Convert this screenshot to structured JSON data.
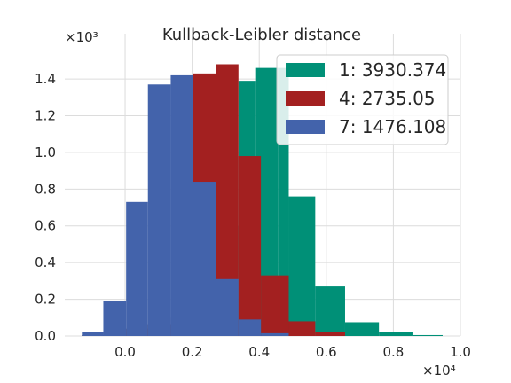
{
  "chart_data": {
    "type": "bar",
    "title": "Kullback-Leibler distance",
    "xlabel": "",
    "ylabel": "",
    "x_scale_label": "×10⁴",
    "y_scale_label": "×10³",
    "xlim": [
      -0.18,
      1.0
    ],
    "ylim": [
      0,
      1.55
    ],
    "xticks": [
      0.0,
      0.2,
      0.4,
      0.6,
      0.8,
      1.0
    ],
    "xtick_labels": [
      "0.0",
      "0.2",
      "0.4",
      "0.6",
      "0.8",
      "1.0"
    ],
    "yticks": [
      0.0,
      0.2,
      0.4,
      0.6,
      0.8,
      1.0,
      1.2,
      1.4
    ],
    "ytick_labels": [
      "0.0",
      "0.2",
      "0.4",
      "0.6",
      "0.8",
      "1.0",
      "1.2",
      "1.4"
    ],
    "grid": true,
    "legend_position": "top-right",
    "series": [
      {
        "name": "1: 3930.374",
        "color": "#009077",
        "bins": [
          {
            "x0": -0.129,
            "x1": -0.065,
            "y": 0.005
          },
          {
            "x0": -0.065,
            "x1": 0.003,
            "y": 0.02
          },
          {
            "x0": 0.003,
            "x1": 0.068,
            "y": 0.04
          },
          {
            "x0": 0.068,
            "x1": 0.136,
            "y": 0.06
          },
          {
            "x0": 0.136,
            "x1": 0.203,
            "y": 0.1
          },
          {
            "x0": 0.203,
            "x1": 0.271,
            "y": 0.2
          },
          {
            "x0": 0.271,
            "x1": 0.338,
            "y": 0.6
          },
          {
            "x0": 0.338,
            "x1": 0.388,
            "y": 1.39
          },
          {
            "x0": 0.388,
            "x1": 0.457,
            "y": 1.46
          },
          {
            "x0": 0.457,
            "x1": 0.488,
            "y": 1.46
          },
          {
            "x0": 0.488,
            "x1": 0.567,
            "y": 0.76
          },
          {
            "x0": 0.567,
            "x1": 0.656,
            "y": 0.27
          },
          {
            "x0": 0.656,
            "x1": 0.757,
            "y": 0.075
          },
          {
            "x0": 0.757,
            "x1": 0.857,
            "y": 0.02
          },
          {
            "x0": 0.857,
            "x1": 0.947,
            "y": 0.005
          }
        ]
      },
      {
        "name": "4: 2735.05",
        "color": "#a32020",
        "bins": [
          {
            "x0": -0.129,
            "x1": -0.065,
            "y": 0.005
          },
          {
            "x0": -0.065,
            "x1": 0.003,
            "y": 0.02
          },
          {
            "x0": 0.003,
            "x1": 0.068,
            "y": 0.04
          },
          {
            "x0": 0.068,
            "x1": 0.136,
            "y": 0.06
          },
          {
            "x0": 0.136,
            "x1": 0.203,
            "y": 0.1
          },
          {
            "x0": 0.203,
            "x1": 0.271,
            "y": 1.43
          },
          {
            "x0": 0.271,
            "x1": 0.338,
            "y": 1.48
          },
          {
            "x0": 0.338,
            "x1": 0.405,
            "y": 0.98
          },
          {
            "x0": 0.405,
            "x1": 0.488,
            "y": 0.33
          },
          {
            "x0": 0.488,
            "x1": 0.567,
            "y": 0.08
          },
          {
            "x0": 0.567,
            "x1": 0.656,
            "y": 0.02
          }
        ]
      },
      {
        "name": "7: 1476.108",
        "color": "#4363ab",
        "bins": [
          {
            "x0": -0.129,
            "x1": -0.065,
            "y": 0.02
          },
          {
            "x0": -0.065,
            "x1": 0.003,
            "y": 0.19
          },
          {
            "x0": 0.003,
            "x1": 0.068,
            "y": 0.73
          },
          {
            "x0": 0.068,
            "x1": 0.136,
            "y": 1.37
          },
          {
            "x0": 0.136,
            "x1": 0.203,
            "y": 1.42
          },
          {
            "x0": 0.203,
            "x1": 0.271,
            "y": 0.84
          },
          {
            "x0": 0.271,
            "x1": 0.338,
            "y": 0.31
          },
          {
            "x0": 0.338,
            "x1": 0.405,
            "y": 0.09
          },
          {
            "x0": 0.405,
            "x1": 0.488,
            "y": 0.015
          }
        ]
      }
    ]
  }
}
